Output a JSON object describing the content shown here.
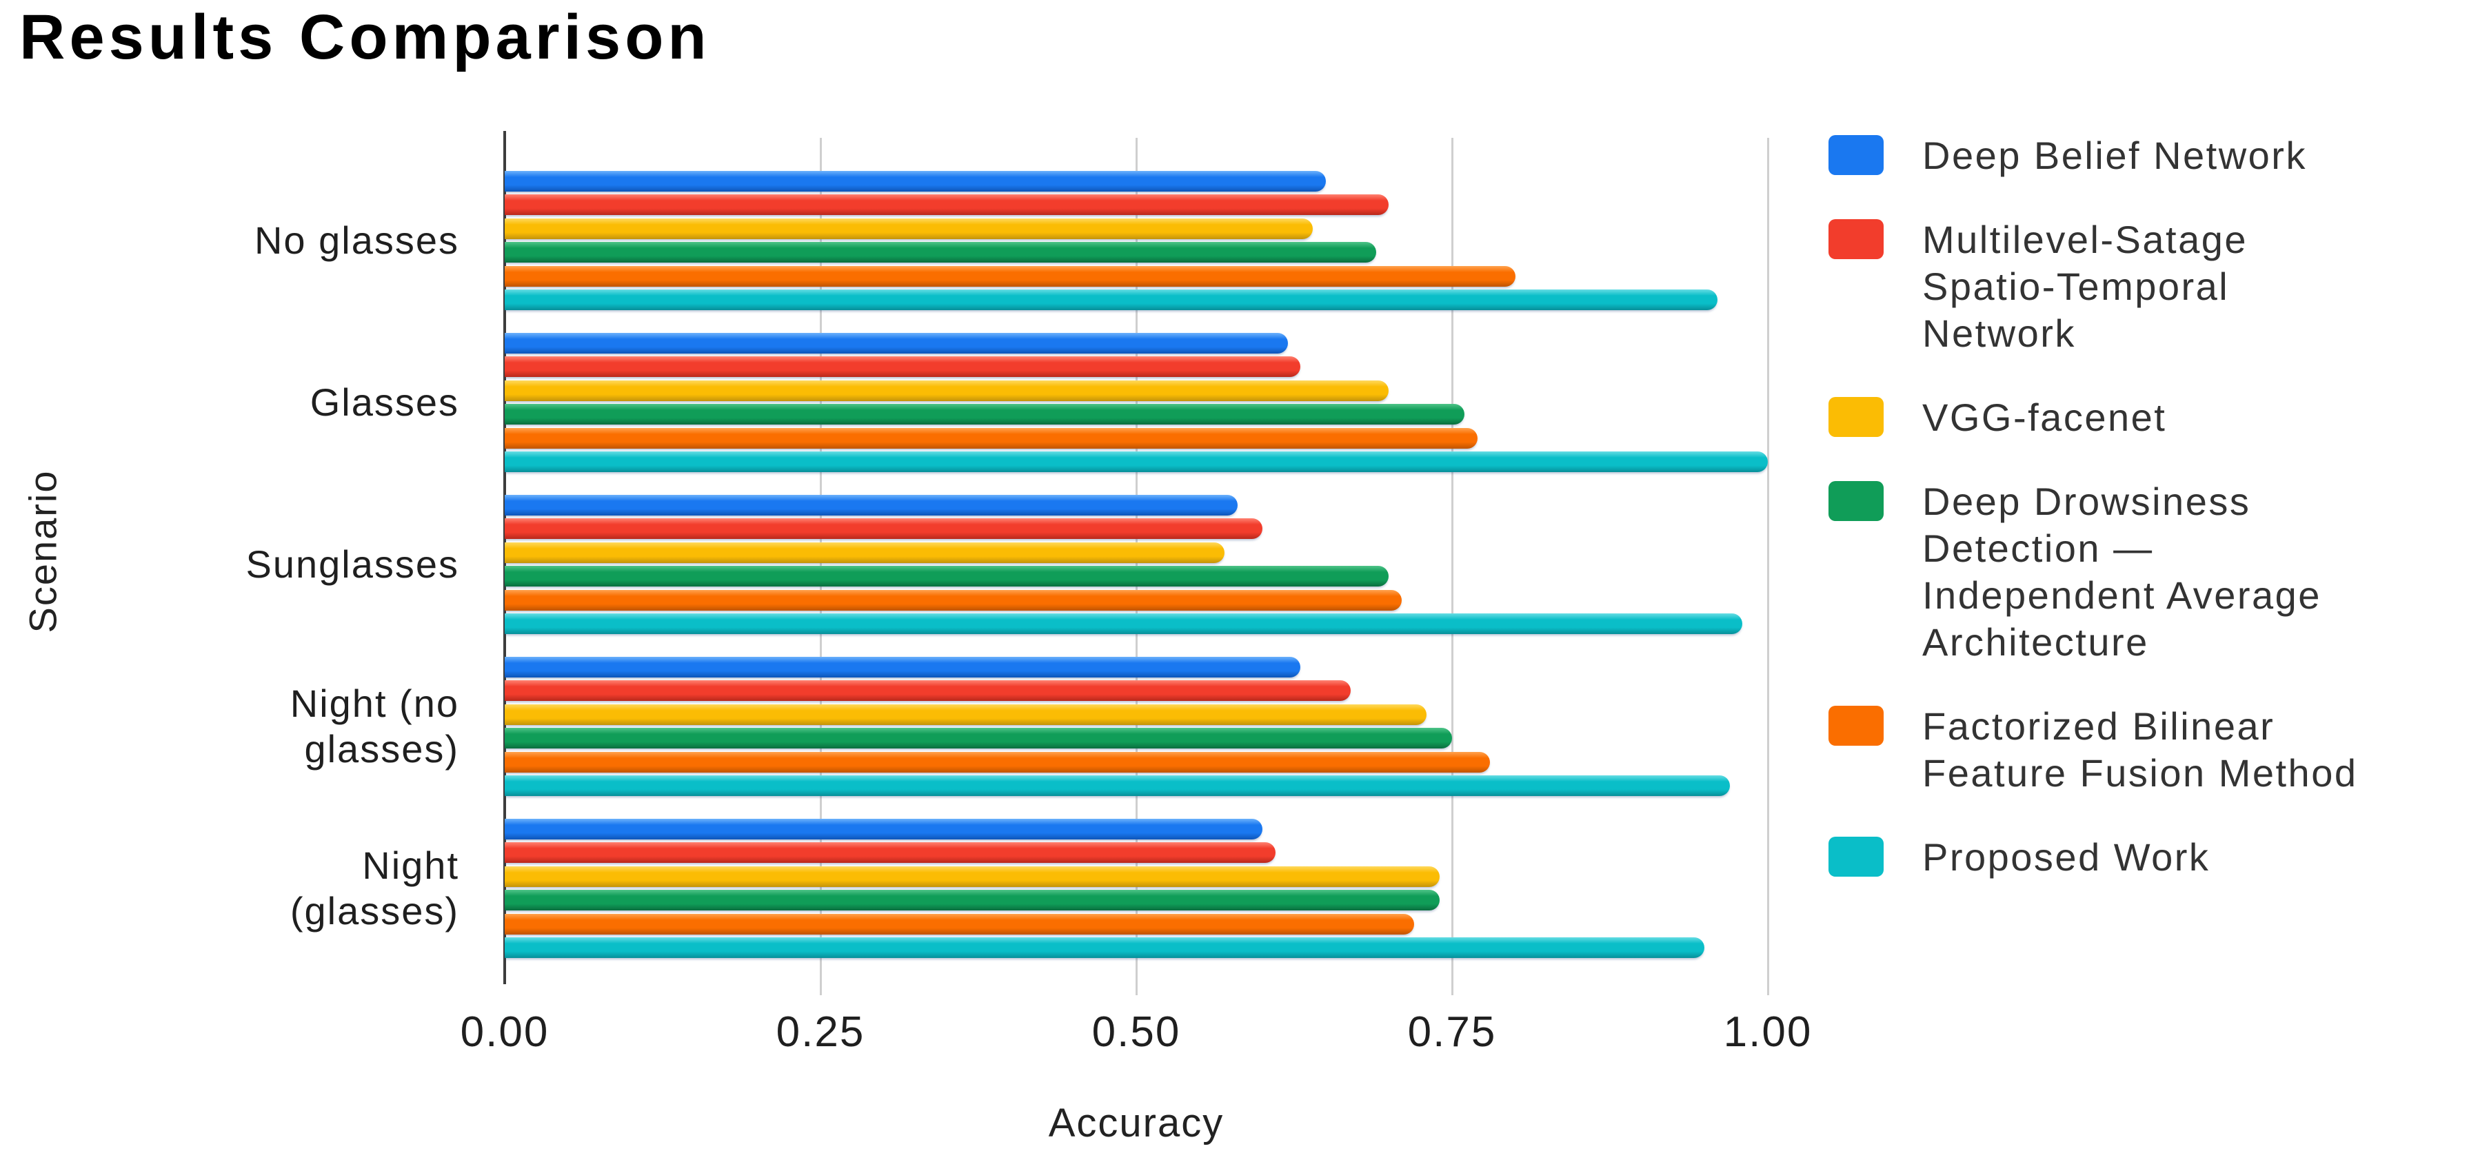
{
  "page": {
    "background": "#ffffff"
  },
  "chart_data": {
    "type": "bar",
    "orientation": "horizontal",
    "title": "Results Comparison",
    "xlabel": "Accuracy",
    "ylabel": "Scenario",
    "xlim": [
      0,
      1.0
    ],
    "grid": true,
    "legend_position": "right",
    "axis_color": "#3d3d3d",
    "gridline_color": "#cfcfcf",
    "x_ticks": [
      {
        "label": "0.00",
        "value": 0
      },
      {
        "label": "0.25",
        "value": 0.25
      },
      {
        "label": "0.50",
        "value": 0.5
      },
      {
        "label": "0.75",
        "value": 0.75
      },
      {
        "label": "1.00",
        "value": 1.0
      }
    ],
    "categories": [
      {
        "label": "No glasses",
        "label_lines": [
          "No glasses"
        ]
      },
      {
        "label": "Glasses",
        "label_lines": [
          "Glasses"
        ]
      },
      {
        "label": "Sunglasses",
        "label_lines": [
          "Sunglasses"
        ]
      },
      {
        "label": "Night (no glasses)",
        "label_lines": [
          "Night (no",
          "glasses)"
        ]
      },
      {
        "label": "Night (glasses)",
        "label_lines": [
          "Night",
          "(glasses)"
        ]
      }
    ],
    "series": [
      {
        "name": "Deep Belief Network",
        "label_lines": [
          "Deep Belief Network"
        ],
        "color": "#1a78f0",
        "color_light": "#6db2fc",
        "color_dark": "#0e55b8",
        "values": [
          0.65,
          0.62,
          0.58,
          0.63,
          0.6
        ]
      },
      {
        "name": "Multilevel-Satage Spatio-Temporal Network",
        "label_lines": [
          "Multilevel-Satage",
          "Spatio-Temporal",
          "Network"
        ],
        "color": "#f23d2c",
        "color_light": "#ff8272",
        "color_dark": "#b8281c",
        "values": [
          0.7,
          0.63,
          0.6,
          0.67,
          0.61
        ]
      },
      {
        "name": "VGG-facenet",
        "label_lines": [
          "VGG-facenet"
        ],
        "color": "#fbbc04",
        "color_light": "#ffd95e",
        "color_dark": "#c3930a",
        "values": [
          0.64,
          0.7,
          0.57,
          0.73,
          0.74
        ]
      },
      {
        "name": "Deep Drowsiness Detection — Independent Average Architecture",
        "label_lines": [
          "Deep Drowsiness",
          "Detection —",
          "Independent Average",
          "Architecture"
        ],
        "color": "#109d58",
        "color_light": "#4fc489",
        "color_dark": "#0a6e3e",
        "values": [
          0.69,
          0.76,
          0.7,
          0.75,
          0.74
        ]
      },
      {
        "name": "Factorized Bilinear Feature Fusion Method",
        "label_lines": [
          "Factorized Bilinear",
          "Feature Fusion Method"
        ],
        "color": "#fa6e00",
        "color_light": "#ffa34f",
        "color_dark": "#bf5400",
        "values": [
          0.8,
          0.77,
          0.71,
          0.78,
          0.72
        ]
      },
      {
        "name": "Proposed Work",
        "label_lines": [
          "Proposed Work"
        ],
        "color": "#0abec8",
        "color_light": "#67dde4",
        "color_dark": "#078f99",
        "values": [
          0.96,
          1.0,
          0.98,
          0.97,
          0.95
        ]
      }
    ]
  }
}
